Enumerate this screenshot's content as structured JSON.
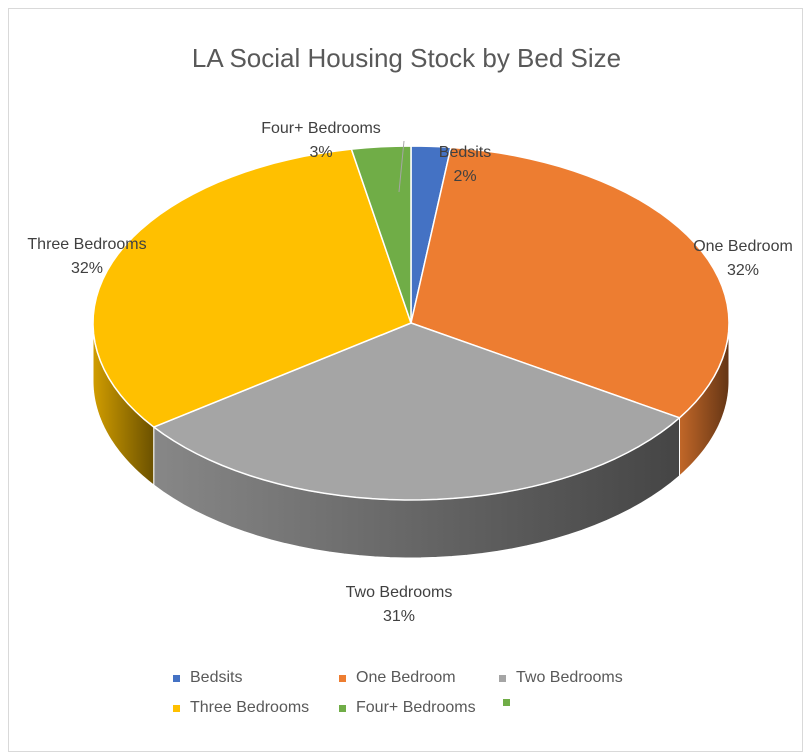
{
  "chart_data": {
    "type": "pie",
    "title": "LA Social Housing Stock by Bed Size",
    "slices": [
      {
        "label": "Bedsits",
        "value": 2,
        "data_label": "2%",
        "color": "#4472C4"
      },
      {
        "label": "One Bedroom",
        "value": 32,
        "data_label": "32%",
        "color": "#ED7D31"
      },
      {
        "label": "Two Bedrooms",
        "value": 31,
        "data_label": "31%",
        "color": "#A5A5A5"
      },
      {
        "label": "Three Bedrooms",
        "value": 32,
        "data_label": "32%",
        "color": "#FFC000"
      },
      {
        "label": "Four+ Bedrooms",
        "value": 3,
        "data_label": "3%",
        "color": "#70AD47"
      }
    ],
    "legend": {
      "position": "bottom",
      "entries": [
        "Bedsits",
        "One Bedroom",
        "Two Bedrooms",
        "Three Bedrooms",
        "Four+ Bedrooms"
      ]
    },
    "style": "3d-pie"
  }
}
